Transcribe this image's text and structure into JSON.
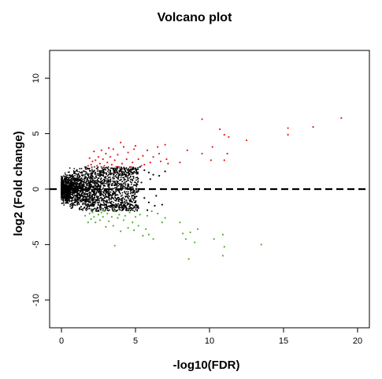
{
  "chart_data": {
    "type": "scatter",
    "title": "Volcano plot",
    "xlabel": "-log10(FDR)",
    "ylabel": "log2 (Fold change)",
    "xlim": [
      -0.8,
      20.8
    ],
    "ylim": [
      -12.5,
      12.5
    ],
    "xticks": [
      "0",
      "5",
      "10",
      "15",
      "20"
    ],
    "yticks": [
      "-10",
      "-5",
      "0",
      "5",
      "10"
    ],
    "xtick_values": [
      0,
      5,
      10,
      15,
      20
    ],
    "ytick_values": [
      -10,
      -5,
      0,
      5,
      10
    ],
    "reference_line_y": 0,
    "grid": false,
    "colors": {
      "up": "#e41a1c",
      "down": "#4daf2a",
      "ns": "#000000",
      "refline": "#000000"
    },
    "series": [
      {
        "key": "up",
        "points": [
          [
            9.5,
            6.3
          ],
          [
            18.9,
            6.4
          ],
          [
            17.0,
            5.6
          ],
          [
            15.3,
            5.5
          ],
          [
            15.3,
            4.9
          ],
          [
            10.7,
            5.4
          ],
          [
            11.0,
            4.9
          ],
          [
            11.3,
            4.7
          ],
          [
            12.5,
            4.4
          ],
          [
            10.2,
            3.8
          ],
          [
            9.5,
            3.2
          ],
          [
            11.2,
            3.2
          ],
          [
            11.0,
            2.6
          ],
          [
            10.1,
            2.6
          ],
          [
            8.5,
            3.5
          ],
          [
            8.0,
            2.4
          ],
          [
            7.0,
            4.0
          ],
          [
            6.5,
            3.8
          ],
          [
            7.1,
            2.7
          ],
          [
            6.6,
            3.2
          ],
          [
            6.2,
            2.9
          ],
          [
            6.0,
            2.4
          ],
          [
            5.8,
            3.5
          ],
          [
            5.5,
            3.0
          ],
          [
            5.2,
            2.7
          ],
          [
            5.0,
            3.9
          ],
          [
            4.8,
            2.4
          ],
          [
            4.5,
            3.3
          ],
          [
            4.4,
            2.7
          ],
          [
            4.2,
            3.8
          ],
          [
            4.1,
            2.3
          ],
          [
            4.0,
            4.2
          ],
          [
            3.8,
            3.1
          ],
          [
            3.6,
            2.6
          ],
          [
            3.5,
            3.6
          ],
          [
            3.4,
            2.2
          ],
          [
            3.3,
            2.9
          ],
          [
            3.2,
            3.7
          ],
          [
            3.1,
            2.4
          ],
          [
            3.0,
            3.2
          ],
          [
            2.9,
            2.1
          ],
          [
            2.8,
            2.7
          ],
          [
            2.7,
            3.5
          ],
          [
            2.6,
            2.3
          ],
          [
            2.5,
            2.9
          ],
          [
            2.4,
            2.1
          ],
          [
            2.3,
            2.6
          ],
          [
            2.2,
            3.4
          ],
          [
            2.0,
            2.2
          ],
          [
            1.9,
            2.8
          ],
          [
            1.8,
            2.1
          ],
          [
            4.7,
            2.0
          ],
          [
            5.4,
            2.1
          ],
          [
            3.9,
            2.0
          ],
          [
            7.2,
            2.3
          ],
          [
            6.7,
            2.5
          ],
          [
            4.9,
            3.6
          ],
          [
            5.6,
            2.2
          ],
          [
            2.1,
            2.5
          ],
          [
            3.7,
            2.0
          ]
        ]
      },
      {
        "key": "down",
        "points": [
          [
            8.6,
            -6.3
          ],
          [
            10.9,
            -6.0
          ],
          [
            11.0,
            -5.2
          ],
          [
            13.5,
            -5.0
          ],
          [
            3.6,
            -5.1
          ],
          [
            9.0,
            -4.8
          ],
          [
            10.3,
            -4.5
          ],
          [
            10.9,
            -4.1
          ],
          [
            8.2,
            -4.0
          ],
          [
            8.4,
            -4.5
          ],
          [
            8.7,
            -3.9
          ],
          [
            8.0,
            -3.0
          ],
          [
            9.2,
            -3.6
          ],
          [
            6.2,
            -4.5
          ],
          [
            5.9,
            -4.1
          ],
          [
            5.7,
            -3.6
          ],
          [
            5.5,
            -4.2
          ],
          [
            5.2,
            -3.3
          ],
          [
            5.0,
            -2.5
          ],
          [
            4.8,
            -3.0
          ],
          [
            4.5,
            -3.5
          ],
          [
            4.3,
            -2.4
          ],
          [
            4.2,
            -2.8
          ],
          [
            4.0,
            -3.8
          ],
          [
            3.8,
            -2.6
          ],
          [
            3.6,
            -2.0
          ],
          [
            3.5,
            -3.3
          ],
          [
            3.4,
            -2.5
          ],
          [
            3.2,
            -2.9
          ],
          [
            3.1,
            -2.2
          ],
          [
            3.0,
            -3.4
          ],
          [
            2.8,
            -2.5
          ],
          [
            2.7,
            -2.1
          ],
          [
            2.6,
            -2.8
          ],
          [
            2.5,
            -2.3
          ],
          [
            2.3,
            -3.0
          ],
          [
            2.2,
            -2.5
          ],
          [
            2.1,
            -2.1
          ],
          [
            2.0,
            -2.7
          ],
          [
            1.9,
            -2.2
          ],
          [
            1.8,
            -3.0
          ],
          [
            1.6,
            -2.4
          ],
          [
            6.5,
            -2.2
          ],
          [
            6.8,
            -3.0
          ],
          [
            7.0,
            -2.6
          ],
          [
            4.6,
            -2.1
          ],
          [
            5.3,
            -2.3
          ],
          [
            5.8,
            -2.4
          ],
          [
            6.1,
            -2.0
          ],
          [
            3.9,
            -2.3
          ],
          [
            4.9,
            -3.7
          ],
          [
            2.9,
            -2.0
          ]
        ]
      },
      {
        "key": "ns",
        "points": [
          [
            5.3,
            2.0
          ],
          [
            5.6,
            1.7
          ],
          [
            5.9,
            1.5
          ],
          [
            6.2,
            1.3
          ],
          [
            6.6,
            1.2
          ],
          [
            7.0,
            1.6
          ],
          [
            6.0,
            0.9
          ],
          [
            5.4,
            0.6
          ],
          [
            5.6,
            -0.8
          ],
          [
            5.9,
            -1.2
          ],
          [
            6.3,
            -1.5
          ],
          [
            6.8,
            -1.4
          ],
          [
            6.4,
            -0.6
          ],
          [
            5.2,
            -1.7
          ],
          [
            5.8,
            -1.9
          ],
          [
            5.1,
            1.5
          ],
          [
            5.0,
            -1.2
          ]
        ]
      }
    ]
  }
}
